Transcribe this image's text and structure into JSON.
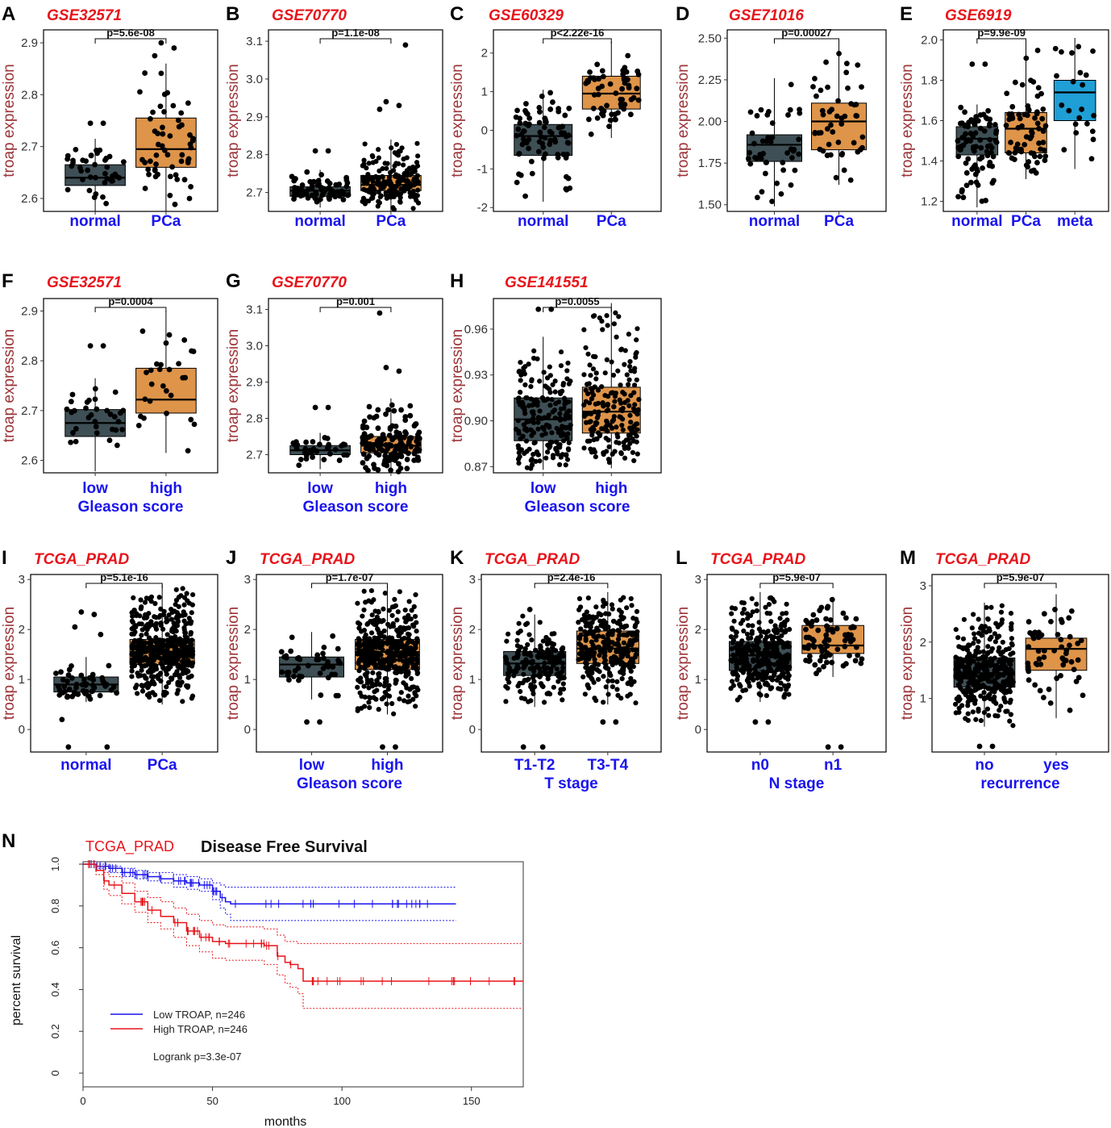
{
  "figure": {
    "bottom_panel_title": "Disease Free Survival"
  },
  "colors": {
    "normal_box": "#3e4f55",
    "pca_box": "#de9449",
    "meta_box": "#1f9fd6",
    "low_curve": "#1a14ee",
    "high_curve": "#e8141b"
  },
  "chart_data": [
    {
      "type": "box",
      "panel": "A",
      "title": "GSE32571",
      "ylabel": "troap expression",
      "categories": [
        "normal",
        "PCa"
      ],
      "ylim": [
        2.575,
        2.925
      ],
      "ticks": [
        "2.6",
        "2.7",
        "2.8",
        "2.9"
      ],
      "boxes": [
        {
          "q1": 2.625,
          "median": 2.64,
          "q3": 2.665,
          "wlo": 2.575,
          "whi": 2.715,
          "n": 40,
          "color": "#3e4f55",
          "outliers": [
            2.745,
            2.745
          ]
        },
        {
          "q1": 2.66,
          "median": 2.695,
          "q3": 2.755,
          "wlo": 2.575,
          "whi": 2.86,
          "n": 55,
          "color": "#de9449",
          "outliers": [
            2.9,
            2.89,
            2.875
          ]
        }
      ],
      "pvalue": "p=5.6e-08",
      "xlabel": ""
    },
    {
      "type": "box",
      "panel": "B",
      "title": "GSE70770",
      "ylabel": "troap expression",
      "categories": [
        "normal",
        "PCa"
      ],
      "ylim": [
        2.65,
        3.13
      ],
      "ticks": [
        "2.7",
        "2.8",
        "2.9",
        "3.0",
        "3.1"
      ],
      "boxes": [
        {
          "q1": 2.69,
          "median": 2.705,
          "q3": 2.715,
          "wlo": 2.66,
          "whi": 2.76,
          "n": 70,
          "color": "#3e4f55",
          "outliers": [
            2.81,
            2.81
          ]
        },
        {
          "q1": 2.705,
          "median": 2.72,
          "q3": 2.745,
          "wlo": 2.65,
          "whi": 2.84,
          "n": 190,
          "color": "#de9449",
          "outliers": [
            2.94,
            2.93,
            2.92,
            3.09
          ]
        }
      ],
      "pvalue": "p=1.1e-08",
      "xlabel": ""
    },
    {
      "type": "box",
      "panel": "C",
      "title": "GSE60329",
      "ylabel": "troap expression",
      "categories": [
        "normal",
        "PCa"
      ],
      "ylim": [
        -2.1,
        2.6
      ],
      "ticks": [
        "-2",
        "-1",
        "0",
        "1",
        "2"
      ],
      "boxes": [
        {
          "q1": -0.65,
          "median": -0.15,
          "q3": 0.15,
          "wlo": -1.85,
          "whi": 1.05,
          "n": 80,
          "color": "#3e4f55",
          "outliers": []
        },
        {
          "q1": 0.55,
          "median": 0.95,
          "q3": 1.4,
          "wlo": -0.2,
          "whi": 2.3,
          "n": 60,
          "color": "#de9449",
          "outliers": []
        }
      ],
      "pvalue": "p<2.22e-16",
      "xlabel": ""
    },
    {
      "type": "box",
      "panel": "D",
      "title": "GSE71016",
      "ylabel": "troap expression",
      "categories": [
        "normal",
        "PCa"
      ],
      "ylim": [
        1.46,
        2.55
      ],
      "ticks": [
        "1.50",
        "1.75",
        "2.00",
        "2.25",
        "2.50"
      ],
      "boxes": [
        {
          "q1": 1.76,
          "median": 1.86,
          "q3": 1.92,
          "wlo": 1.49,
          "whi": 2.26,
          "n": 45,
          "color": "#3e4f55",
          "outliers": []
        },
        {
          "q1": 1.83,
          "median": 2.0,
          "q3": 2.11,
          "wlo": 1.62,
          "whi": 2.47,
          "n": 50,
          "color": "#de9449",
          "outliers": []
        }
      ],
      "pvalue": "p=0.00027",
      "xlabel": ""
    },
    {
      "type": "box",
      "panel": "E",
      "title": "GSE6919",
      "ylabel": "troap expression",
      "categories": [
        "normal",
        "PCa",
        "meta"
      ],
      "ylim": [
        1.15,
        2.05
      ],
      "ticks": [
        "1.2",
        "1.4",
        "1.6",
        "1.8",
        "2.0"
      ],
      "boxes": [
        {
          "q1": 1.43,
          "median": 1.51,
          "q3": 1.57,
          "wlo": 1.17,
          "whi": 1.68,
          "n": 90,
          "color": "#3e4f55",
          "outliers": [
            1.88,
            1.88
          ]
        },
        {
          "q1": 1.44,
          "median": 1.56,
          "q3": 1.64,
          "wlo": 1.31,
          "whi": 1.99,
          "n": 70,
          "color": "#de9449",
          "outliers": []
        },
        {
          "q1": 1.6,
          "median": 1.74,
          "q3": 1.8,
          "wlo": 1.36,
          "whi": 2.01,
          "n": 22,
          "color": "#1f9fd6",
          "outliers": []
        }
      ],
      "pvalue": "p=9.9e-09",
      "xlabel": ""
    },
    {
      "type": "box",
      "panel": "F",
      "title": "GSE32571",
      "ylabel": "troap expression",
      "categories": [
        "low",
        "high"
      ],
      "ylim": [
        2.575,
        2.925
      ],
      "ticks": [
        "2.6",
        "2.7",
        "2.8",
        "2.9"
      ],
      "boxes": [
        {
          "q1": 2.648,
          "median": 2.675,
          "q3": 2.702,
          "wlo": 2.578,
          "whi": 2.765,
          "n": 32,
          "color": "#3e4f55",
          "outliers": [
            2.83,
            2.83
          ]
        },
        {
          "q1": 2.695,
          "median": 2.722,
          "q3": 2.785,
          "wlo": 2.615,
          "whi": 2.9,
          "n": 28,
          "color": "#de9449",
          "outliers": []
        }
      ],
      "pvalue": "p=0.0004",
      "xlabel": "Gleason score"
    },
    {
      "type": "box",
      "panel": "G",
      "title": "GSE70770",
      "ylabel": "troap expression",
      "categories": [
        "low",
        "high"
      ],
      "ylim": [
        2.65,
        3.13
      ],
      "ticks": [
        "2.7",
        "2.8",
        "2.9",
        "3.0",
        "3.1"
      ],
      "boxes": [
        {
          "q1": 2.7,
          "median": 2.712,
          "q3": 2.725,
          "wlo": 2.66,
          "whi": 2.76,
          "n": 35,
          "color": "#3e4f55",
          "outliers": [
            2.83,
            2.83
          ]
        },
        {
          "q1": 2.705,
          "median": 2.725,
          "q3": 2.75,
          "wlo": 2.65,
          "whi": 2.855,
          "n": 150,
          "color": "#de9449",
          "outliers": [
            2.94,
            2.93,
            3.09
          ]
        }
      ],
      "pvalue": "p=0.001",
      "xlabel": "Gleason score"
    },
    {
      "type": "box",
      "panel": "H",
      "title": "GSE141551",
      "ylabel": "troap expression",
      "categories": [
        "low",
        "high"
      ],
      "ylim": [
        0.866,
        0.98
      ],
      "ticks": [
        "0.87",
        "0.90",
        "0.93",
        "0.96"
      ],
      "boxes": [
        {
          "q1": 0.887,
          "median": 0.901,
          "q3": 0.915,
          "wlo": 0.868,
          "whi": 0.955,
          "n": 200,
          "color": "#3e4f55",
          "outliers": [
            0.973,
            0.973
          ]
        },
        {
          "q1": 0.892,
          "median": 0.906,
          "q3": 0.922,
          "wlo": 0.869,
          "whi": 0.977,
          "n": 200,
          "color": "#de9449",
          "outliers": []
        }
      ],
      "pvalue": "p=0.0055",
      "xlabel": "Gleason score"
    },
    {
      "type": "box",
      "panel": "I",
      "title": "TCGA_PRAD",
      "ylabel": "troap expression",
      "categories": [
        "normal",
        "PCa"
      ],
      "ylim": [
        -0.45,
        3.1
      ],
      "ticks": [
        "0",
        "1",
        "2",
        "3"
      ],
      "boxes": [
        {
          "q1": 0.75,
          "median": 0.9,
          "q3": 1.05,
          "wlo": 0.55,
          "whi": 1.45,
          "n": 52,
          "color": "#3e4f55",
          "outliers": [
            2.35,
            2.3,
            2.05,
            1.9,
            -0.35,
            -0.35,
            0.2
          ]
        },
        {
          "q1": 1.3,
          "median": 1.55,
          "q3": 1.8,
          "wlo": 0.5,
          "whi": 2.9,
          "n": 490,
          "color": "#de9449",
          "outliers": []
        }
      ],
      "pvalue": "p=5.1e-16",
      "xlabel": ""
    },
    {
      "type": "box",
      "panel": "J",
      "title": "TCGA_PRAD",
      "ylabel": "troap expression",
      "categories": [
        "low",
        "high"
      ],
      "ylim": [
        -0.45,
        3.1
      ],
      "ticks": [
        "0",
        "1",
        "2",
        "3"
      ],
      "boxes": [
        {
          "q1": 1.05,
          "median": 1.3,
          "q3": 1.45,
          "wlo": 0.6,
          "whi": 1.95,
          "n": 45,
          "color": "#3e4f55",
          "outliers": [
            0.15,
            0.15
          ]
        },
        {
          "q1": 1.2,
          "median": 1.55,
          "q3": 1.8,
          "wlo": 0.3,
          "whi": 2.9,
          "n": 440,
          "color": "#de9449",
          "outliers": [
            -0.35,
            -0.35
          ]
        }
      ],
      "pvalue": "p=1.7e-07",
      "xlabel": "Gleason score"
    },
    {
      "type": "box",
      "panel": "K",
      "title": "TCGA_PRAD",
      "ylabel": "troap expression",
      "categories": [
        "T1-T2",
        "T3-T4"
      ],
      "ylim": [
        -0.45,
        3.1
      ],
      "ticks": [
        "0",
        "1",
        "2",
        "3"
      ],
      "boxes": [
        {
          "q1": 1.08,
          "median": 1.32,
          "q3": 1.56,
          "wlo": 0.45,
          "whi": 2.3,
          "n": 190,
          "color": "#3e4f55",
          "outliers": [
            2.4,
            -0.35,
            -0.35
          ]
        },
        {
          "q1": 1.32,
          "median": 1.62,
          "q3": 1.97,
          "wlo": 0.5,
          "whi": 2.75,
          "n": 300,
          "color": "#de9449",
          "outliers": [
            0.15,
            0.15
          ]
        }
      ],
      "pvalue": "p=2.4e-16",
      "xlabel": "T stage"
    },
    {
      "type": "box",
      "panel": "L",
      "title": "TCGA_PRAD",
      "ylabel": "troap expression",
      "categories": [
        "n0",
        "n1"
      ],
      "ylim": [
        -0.45,
        3.1
      ],
      "ticks": [
        "0",
        "1",
        "2",
        "3"
      ],
      "boxes": [
        {
          "q1": 1.18,
          "median": 1.48,
          "q3": 1.76,
          "wlo": 0.55,
          "whi": 2.75,
          "n": 340,
          "color": "#3e4f55",
          "outliers": [
            0.15,
            0.15
          ]
        },
        {
          "q1": 1.52,
          "median": 1.68,
          "q3": 2.08,
          "wlo": 1.05,
          "whi": 2.65,
          "n": 80,
          "color": "#de9449",
          "outliers": [
            -0.35,
            -0.35
          ]
        }
      ],
      "pvalue": "p=5.9e-07",
      "xlabel": "N stage"
    },
    {
      "type": "box",
      "panel": "M",
      "title": "TCGA_PRAD",
      "ylabel": "troap expression",
      "categories": [
        "no",
        "yes"
      ],
      "ylim": [
        0.05,
        3.2
      ],
      "ticks": [
        "1",
        "2",
        "3"
      ],
      "boxes": [
        {
          "q1": 1.2,
          "median": 1.45,
          "q3": 1.72,
          "wlo": 0.5,
          "whi": 2.7,
          "n": 380,
          "color": "#3e4f55",
          "outliers": [
            0.15,
            0.15
          ]
        },
        {
          "q1": 1.5,
          "median": 1.88,
          "q3": 2.07,
          "wlo": 0.65,
          "whi": 2.85,
          "n": 58,
          "color": "#de9449",
          "outliers": []
        }
      ],
      "pvalue": "p=5.9e-07",
      "xlabel": "recurrence"
    },
    {
      "type": "line",
      "panel": "N",
      "title": "TCGA_PRAD",
      "xlabel": "months",
      "ylabel": "percent survival",
      "xlim": [
        0,
        170
      ],
      "ylim": [
        0,
        1.0
      ],
      "xticks": [
        "0",
        "50",
        "100",
        "150"
      ],
      "yticks": [
        "0",
        "0.2",
        "0.4",
        "0.6",
        "0.8",
        "1.0"
      ],
      "series": [
        {
          "name": "Low TROAP, n=246",
          "color": "#1a14ee",
          "x": [
            0,
            5,
            10,
            15,
            20,
            25,
            30,
            35,
            40,
            45,
            50,
            53,
            55,
            57,
            60,
            100,
            144
          ],
          "y": [
            1.0,
            0.99,
            0.98,
            0.96,
            0.95,
            0.94,
            0.93,
            0.92,
            0.91,
            0.9,
            0.87,
            0.84,
            0.82,
            0.81,
            0.81,
            0.81,
            0.81
          ],
          "upper": [
            1.0,
            1.0,
            0.99,
            0.98,
            0.97,
            0.96,
            0.96,
            0.95,
            0.94,
            0.93,
            0.91,
            0.9,
            0.89,
            0.89,
            0.89,
            0.89,
            0.89
          ],
          "lower": [
            1.0,
            0.98,
            0.96,
            0.94,
            0.93,
            0.92,
            0.91,
            0.89,
            0.88,
            0.87,
            0.83,
            0.79,
            0.76,
            0.73,
            0.73,
            0.73,
            0.73
          ]
        },
        {
          "name": "High TROAP, n=246",
          "color": "#e8141b",
          "x": [
            0,
            5,
            8,
            10,
            15,
            20,
            25,
            30,
            35,
            40,
            45,
            50,
            55,
            60,
            65,
            70,
            75,
            78,
            80,
            83,
            85,
            100,
            170
          ],
          "y": [
            1.0,
            0.97,
            0.92,
            0.9,
            0.86,
            0.82,
            0.78,
            0.75,
            0.72,
            0.68,
            0.65,
            0.63,
            0.62,
            0.62,
            0.62,
            0.61,
            0.56,
            0.53,
            0.52,
            0.5,
            0.44,
            0.44,
            0.44
          ],
          "upper": [
            1.0,
            0.99,
            0.96,
            0.94,
            0.91,
            0.87,
            0.84,
            0.82,
            0.79,
            0.76,
            0.73,
            0.71,
            0.7,
            0.7,
            0.7,
            0.69,
            0.66,
            0.63,
            0.63,
            0.62,
            0.62,
            0.62,
            0.62
          ],
          "lower": [
            1.0,
            0.95,
            0.88,
            0.85,
            0.81,
            0.77,
            0.72,
            0.69,
            0.65,
            0.61,
            0.58,
            0.55,
            0.54,
            0.54,
            0.54,
            0.52,
            0.47,
            0.43,
            0.41,
            0.38,
            0.31,
            0.31,
            0.31
          ]
        }
      ],
      "legend": {
        "low": "Low TROAP, n=246",
        "high": "High TROAP, n=246",
        "logrank": "Logrank p=3.3e-07"
      }
    }
  ]
}
